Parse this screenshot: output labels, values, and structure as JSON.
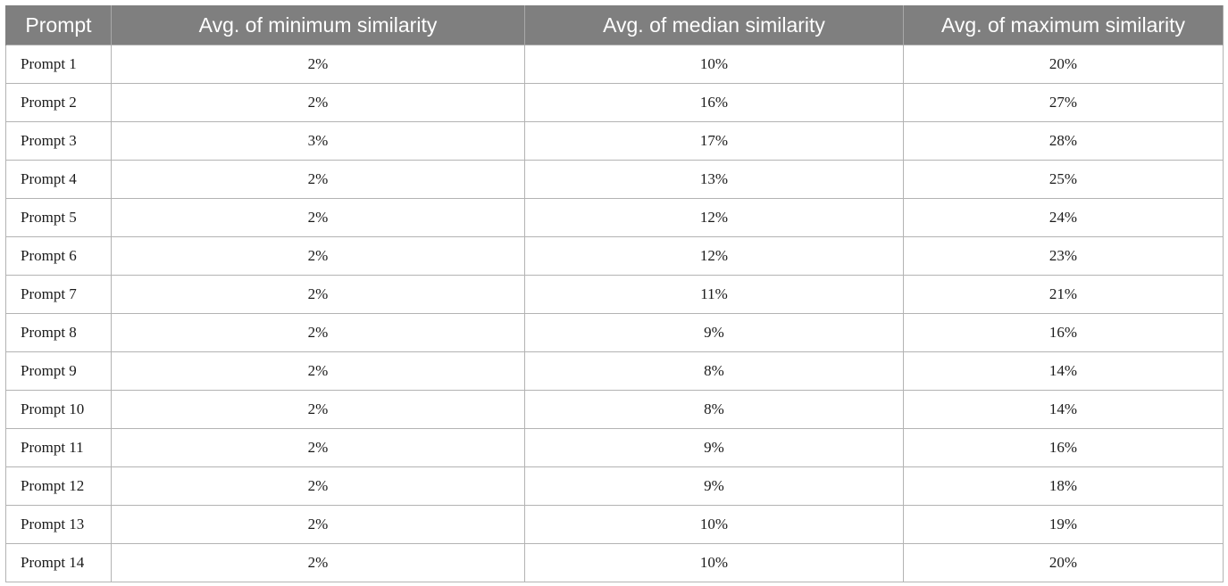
{
  "table": {
    "headers": [
      "Prompt",
      "Avg. of minimum similarity",
      "Avg. of median similarity",
      "Avg. of maximum similarity"
    ],
    "rows": [
      [
        "Prompt 1",
        "2%",
        "10%",
        "20%"
      ],
      [
        "Prompt 2",
        "2%",
        "16%",
        "27%"
      ],
      [
        "Prompt 3",
        "3%",
        "17%",
        "28%"
      ],
      [
        "Prompt 4",
        "2%",
        "13%",
        "25%"
      ],
      [
        "Prompt 5",
        "2%",
        "12%",
        "24%"
      ],
      [
        "Prompt 6",
        "2%",
        "12%",
        "23%"
      ],
      [
        "Prompt 7",
        "2%",
        "11%",
        "21%"
      ],
      [
        "Prompt 8",
        "2%",
        "9%",
        "16%"
      ],
      [
        "Prompt 9",
        "2%",
        "8%",
        "14%"
      ],
      [
        "Prompt 10",
        "2%",
        "8%",
        "14%"
      ],
      [
        "Prompt 11",
        "2%",
        "9%",
        "16%"
      ],
      [
        "Prompt 12",
        "2%",
        "9%",
        "18%"
      ],
      [
        "Prompt 13",
        "2%",
        "10%",
        "19%"
      ],
      [
        "Prompt 14",
        "2%",
        "10%",
        "20%"
      ]
    ]
  }
}
